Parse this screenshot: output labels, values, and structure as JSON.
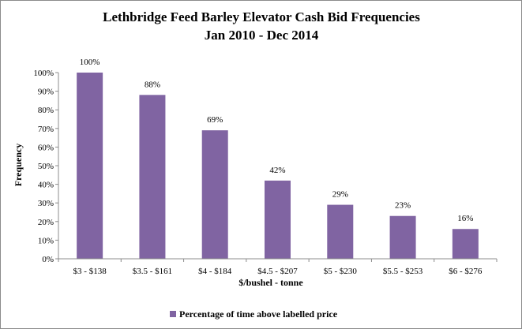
{
  "chart_data": {
    "type": "bar",
    "title": "Lethbridge Feed Barley Elevator Cash Bid Frequencies",
    "subtitle": "Jan 2010 - Dec 2014",
    "xlabel": "$/bushel - tonne",
    "ylabel": "Frequency",
    "categories": [
      "$3 - $138",
      "$3.5 - $161",
      "$4 - $184",
      "$4.5 - $207",
      "$5 - $230",
      "$5.5 - $253",
      "$6 - $276"
    ],
    "series": [
      {
        "name": "Percentage of time above labelled price",
        "values": [
          100,
          88,
          69,
          42,
          29,
          23,
          16
        ],
        "labels": [
          "100%",
          "88%",
          "69%",
          "42%",
          "29%",
          "23%",
          "16%"
        ],
        "color": "#8064a2"
      }
    ],
    "ylim": [
      0,
      100
    ],
    "yticks": [
      0,
      10,
      20,
      30,
      40,
      50,
      60,
      70,
      80,
      90,
      100
    ],
    "ytick_labels": [
      "0%",
      "10%",
      "20%",
      "30%",
      "40%",
      "50%",
      "60%",
      "70%",
      "80%",
      "90%",
      "100%"
    ],
    "grid": false,
    "legend": "bottom"
  }
}
